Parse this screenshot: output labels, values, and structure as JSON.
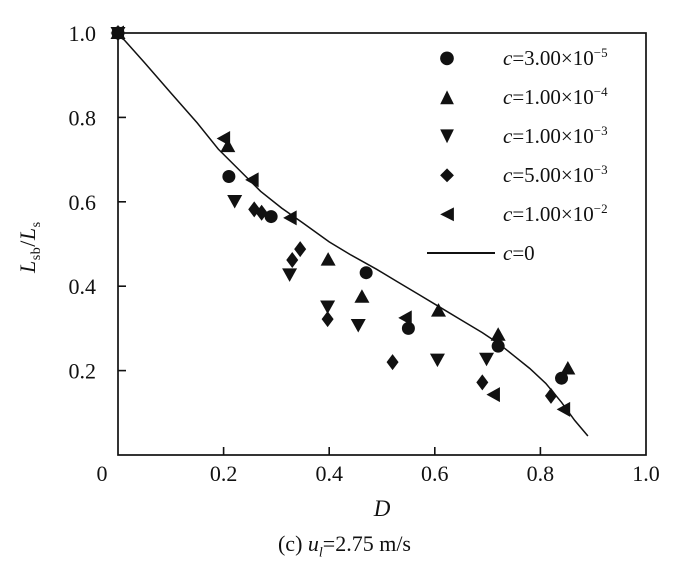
{
  "figure": {
    "background": "#ffffff",
    "ink": "#111111"
  },
  "axes": {
    "x_label": "D",
    "y_label": {
      "l1": "L",
      "s1": "sb",
      "sep": "/",
      "l2": "L",
      "s2": "s"
    },
    "x_tick_labels": [
      "0",
      "0.2",
      "0.4",
      "0.6",
      "0.8",
      "1.0"
    ],
    "y_tick_labels": [
      "0.2",
      "0.4",
      "0.6",
      "0.8",
      "1.0"
    ]
  },
  "caption": {
    "prefix": "(c) ",
    "var": "u",
    "sub": "l",
    "rest": "=2.75 m/s"
  },
  "legend": {
    "items": [
      {
        "sym": "●",
        "marker": "circle",
        "var": "c",
        "val": "=3.00×10",
        "exp": "−5"
      },
      {
        "sym": "▲",
        "marker": "triangle-up",
        "var": "c",
        "val": "=1.00×10",
        "exp": "−4"
      },
      {
        "sym": "▼",
        "marker": "triangle-down",
        "var": "c",
        "val": "=1.00×10",
        "exp": "−3"
      },
      {
        "sym": "◆",
        "marker": "diamond",
        "var": "c",
        "val": "=5.00×10",
        "exp": "−3"
      },
      {
        "sym": "◀",
        "marker": "triangle-left",
        "var": "c",
        "val": "=1.00×10",
        "exp": "−2"
      },
      {
        "sym": "",
        "marker": "line",
        "var": "c",
        "val": "=0",
        "exp": ""
      }
    ]
  },
  "chart_data": {
    "type": "scatter",
    "title": "",
    "xlabel": "D",
    "ylabel": "Lsb/Ls",
    "xlim": [
      0,
      1.0
    ],
    "ylim": [
      0,
      1.0
    ],
    "x_ticks": [
      0,
      0.2,
      0.4,
      0.6,
      0.8,
      1.0
    ],
    "y_ticks": [
      0.2,
      0.4,
      0.6,
      0.8,
      1.0
    ],
    "grid": false,
    "legend_position": "upper right inside",
    "series": [
      {
        "name": "c=3.00×10⁻⁵",
        "marker": "circle",
        "points": [
          [
            0,
            1.0
          ],
          [
            0.21,
            0.66
          ],
          [
            0.29,
            0.565
          ],
          [
            0.47,
            0.432
          ],
          [
            0.55,
            0.3
          ],
          [
            0.72,
            0.258
          ],
          [
            0.84,
            0.182
          ]
        ]
      },
      {
        "name": "c=1.00×10⁻⁴",
        "marker": "triangle-up",
        "points": [
          [
            0,
            1.0
          ],
          [
            0.208,
            0.732
          ],
          [
            0.398,
            0.463
          ],
          [
            0.462,
            0.375
          ],
          [
            0.607,
            0.342
          ],
          [
            0.72,
            0.285
          ],
          [
            0.852,
            0.205
          ]
        ]
      },
      {
        "name": "c=1.00×10⁻³",
        "marker": "triangle-down",
        "points": [
          [
            0,
            1.0
          ],
          [
            0.221,
            0.602
          ],
          [
            0.325,
            0.428
          ],
          [
            0.397,
            0.352
          ],
          [
            0.455,
            0.308
          ],
          [
            0.605,
            0.226
          ],
          [
            0.698,
            0.228
          ]
        ]
      },
      {
        "name": "c=5.00×10⁻³",
        "marker": "diamond",
        "points": [
          [
            0,
            1.0
          ],
          [
            0.258,
            0.582
          ],
          [
            0.272,
            0.574
          ],
          [
            0.33,
            0.462
          ],
          [
            0.345,
            0.488
          ],
          [
            0.397,
            0.322
          ],
          [
            0.52,
            0.22
          ],
          [
            0.69,
            0.172
          ],
          [
            0.82,
            0.14
          ]
        ]
      },
      {
        "name": "c=1.00×10⁻²",
        "marker": "triangle-left",
        "points": [
          [
            0,
            1.0
          ],
          [
            0.201,
            0.75
          ],
          [
            0.255,
            0.652
          ],
          [
            0.327,
            0.562
          ],
          [
            0.545,
            0.325
          ],
          [
            0.712,
            0.143
          ],
          [
            0.845,
            0.108
          ]
        ]
      }
    ],
    "line_series": {
      "name": "c=0",
      "points": [
        [
          0,
          1.0
        ],
        [
          0.05,
          0.93
        ],
        [
          0.1,
          0.858
        ],
        [
          0.15,
          0.787
        ],
        [
          0.19,
          0.725
        ],
        [
          0.23,
          0.675
        ],
        [
          0.27,
          0.625
        ],
        [
          0.31,
          0.585
        ],
        [
          0.35,
          0.55
        ],
        [
          0.4,
          0.505
        ],
        [
          0.44,
          0.475
        ],
        [
          0.49,
          0.44
        ],
        [
          0.53,
          0.41
        ],
        [
          0.57,
          0.38
        ],
        [
          0.61,
          0.35
        ],
        [
          0.65,
          0.32
        ],
        [
          0.69,
          0.29
        ],
        [
          0.72,
          0.265
        ],
        [
          0.75,
          0.235
        ],
        [
          0.78,
          0.205
        ],
        [
          0.81,
          0.17
        ],
        [
          0.84,
          0.125
        ],
        [
          0.865,
          0.082
        ],
        [
          0.89,
          0.045
        ]
      ]
    }
  }
}
